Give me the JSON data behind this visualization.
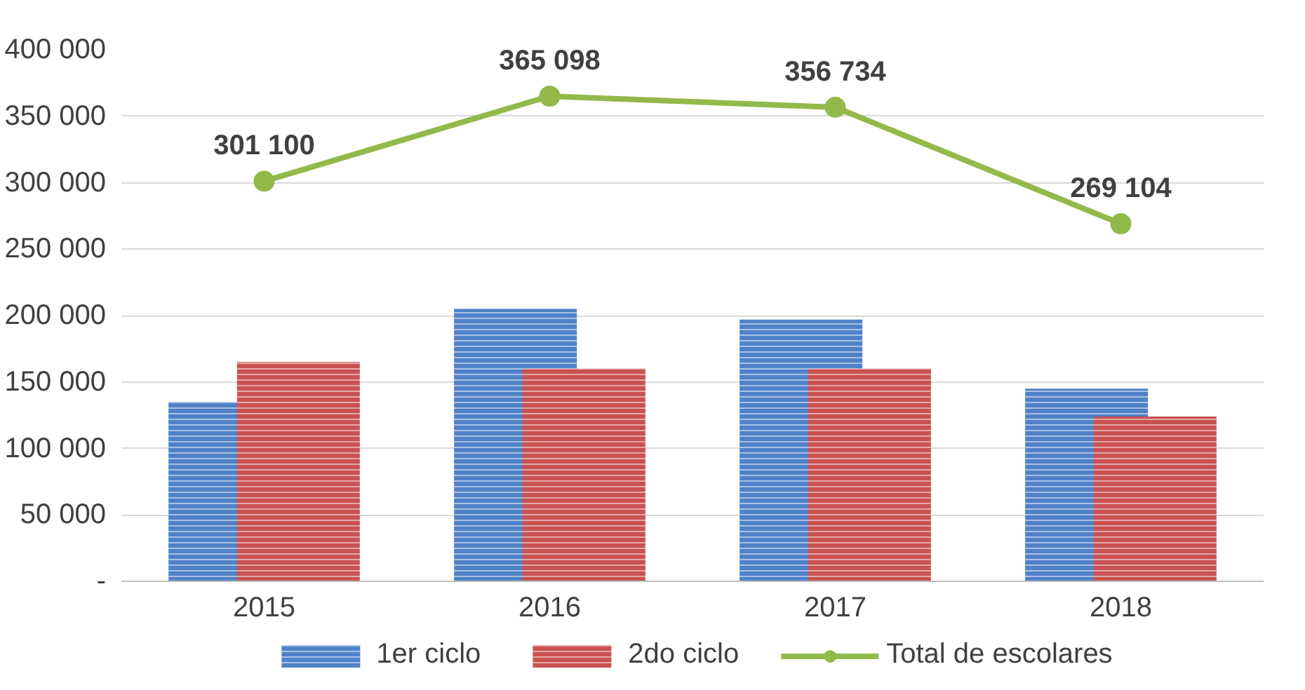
{
  "chart_data": {
    "type": "bar",
    "categories": [
      "2015",
      "2016",
      "2017",
      "2018"
    ],
    "series": [
      {
        "name": "1er ciclo",
        "color": "#4f81c7",
        "values": [
          135000,
          205000,
          197000,
          145000
        ]
      },
      {
        "name": "2do ciclo",
        "color": "#c9514f",
        "values": [
          165000,
          160000,
          160000,
          124000
        ]
      },
      {
        "name": "Total de escolares",
        "type": "line",
        "color": "#92b94a",
        "values": [
          301100,
          365098,
          356734,
          269104
        ],
        "value_labels": [
          "301 100",
          "365 098",
          "356 734",
          "269 104"
        ],
        "marker": "circle"
      }
    ],
    "ylim": [
      0,
      400000
    ],
    "yticks": [
      {
        "value": 0,
        "label": "-"
      },
      {
        "value": 50000,
        "label": "50 000"
      },
      {
        "value": 100000,
        "label": "100 000"
      },
      {
        "value": 150000,
        "label": "150 000"
      },
      {
        "value": 200000,
        "label": "200 000"
      },
      {
        "value": 250000,
        "label": "250 000"
      },
      {
        "value": 300000,
        "label": "300 000"
      },
      {
        "value": 350000,
        "label": "350 000"
      },
      {
        "value": 400000,
        "label": "400 000"
      }
    ],
    "grid": "y",
    "legend": "bottom"
  }
}
